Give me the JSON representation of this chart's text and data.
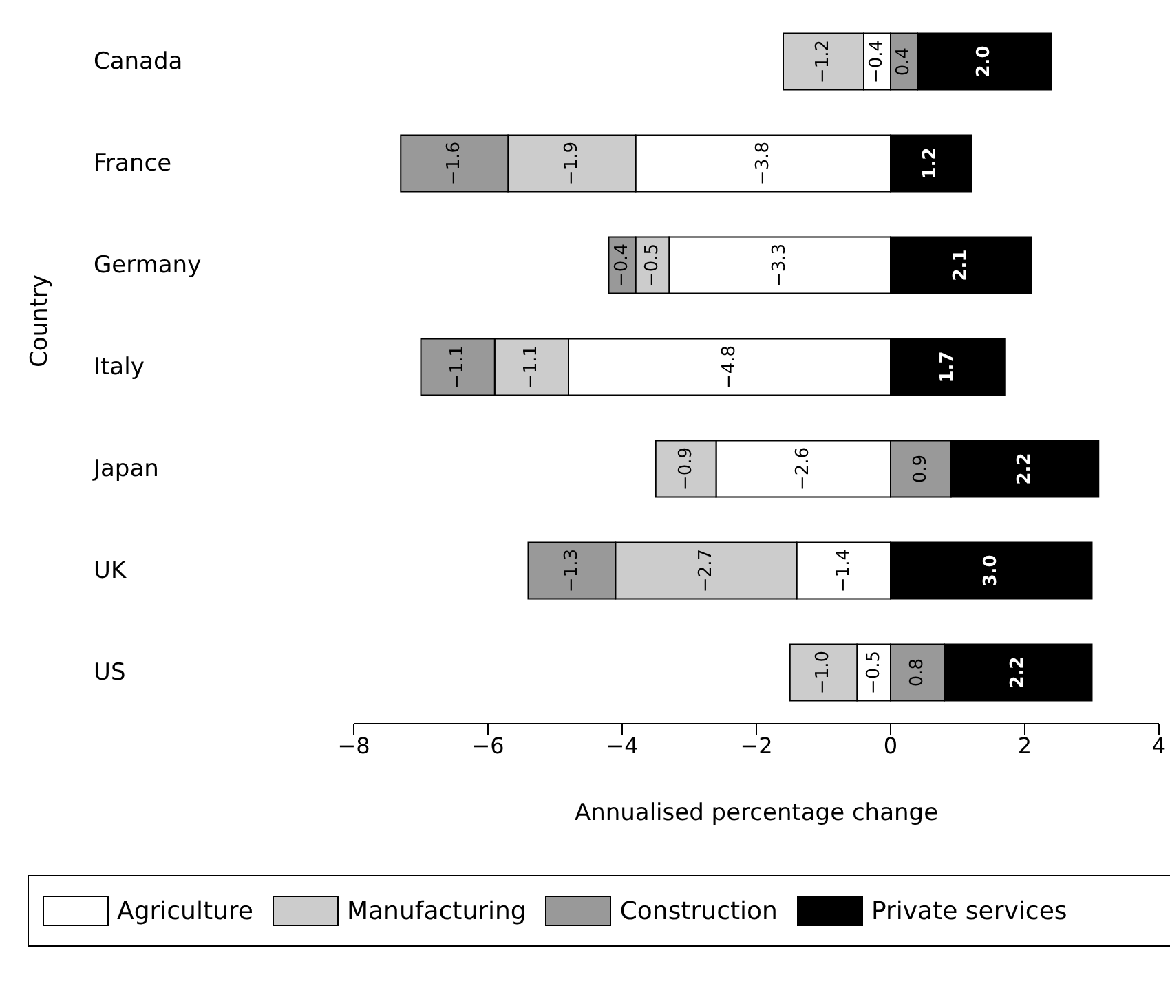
{
  "chart_data": {
    "type": "bar",
    "orientation": "horizontal",
    "stacked": true,
    "xlabel": "Annualised percentage change",
    "ylabel": "Country",
    "categories": [
      "Canada",
      "France",
      "Germany",
      "Italy",
      "Japan",
      "UK",
      "US"
    ],
    "series": [
      {
        "name": "Agriculture",
        "color": "#ffffff",
        "values": [
          -0.4,
          -3.8,
          -3.3,
          -4.8,
          -2.6,
          -1.4,
          -0.5
        ],
        "value_labels": [
          "−0.4",
          "−3.8",
          "−3.3",
          "−4.8",
          "−2.6",
          "−1.4",
          "−0.5"
        ]
      },
      {
        "name": "Manufacturing",
        "color": "#cccccc",
        "values": [
          -1.2,
          -1.9,
          -0.5,
          -1.1,
          -0.9,
          -2.7,
          -1.0
        ],
        "value_labels": [
          "−1.2",
          "−1.9",
          "−0.5",
          "−1.1",
          "−0.9",
          "−2.7",
          "−1.0"
        ]
      },
      {
        "name": "Construction",
        "color": "#999999",
        "values": [
          0.4,
          -1.6,
          -0.4,
          -1.1,
          0.9,
          -1.3,
          0.8
        ],
        "value_labels": [
          "0.4",
          "−1.6",
          "−0.4",
          "−1.1",
          "0.9",
          "−1.3",
          "0.8"
        ]
      },
      {
        "name": "Private services",
        "color": "#000000",
        "values": [
          2.0,
          1.2,
          2.1,
          1.7,
          2.2,
          3.0,
          2.2
        ],
        "value_labels": [
          "2.0",
          "1.2",
          "2.1",
          "1.7",
          "2.2",
          "3.0",
          "2.2"
        ]
      }
    ],
    "xlim": [
      -8,
      4
    ],
    "xticks": [
      {
        "value": -8,
        "label": "−8"
      },
      {
        "value": -6,
        "label": "−6"
      },
      {
        "value": -4,
        "label": "−4"
      },
      {
        "value": -2,
        "label": "−2"
      },
      0,
      2,
      4
    ],
    "grid": false,
    "legend": "bottom"
  }
}
